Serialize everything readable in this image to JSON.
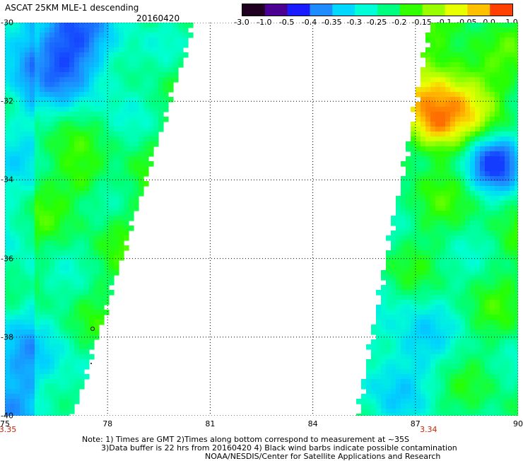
{
  "header": {
    "title": "ASCAT 25KM MLE-1 descending",
    "date": "20160420"
  },
  "colorbar": {
    "ticks": [
      "-3.0",
      "-1.0",
      "-0.5",
      "-0.4",
      "-0.35",
      "-0.3",
      "-0.25",
      "-0.2",
      "-0.15",
      "-0.1",
      "-0.05",
      "0.0",
      "1.0"
    ],
    "colors": [
      "#200020",
      "#4a0090",
      "#1b1bff",
      "#1e8cff",
      "#00d8ff",
      "#00ffd8",
      "#00ff80",
      "#33ff00",
      "#99ff00",
      "#e8ff00",
      "#ffc000",
      "#ff4000"
    ]
  },
  "map": {
    "lat_labels": [
      "-30",
      "-32",
      "-34",
      "-36",
      "-38",
      "-40"
    ],
    "lon_labels": [
      "75",
      "78",
      "81",
      "84",
      "87",
      "90"
    ],
    "lat_range": [
      -40,
      -30
    ],
    "lon_range": [
      75,
      90
    ],
    "swath_times": [
      {
        "label": "3.35",
        "lon": 75
      },
      {
        "label": "3.34",
        "lon": 87.3
      }
    ]
  },
  "notes": {
    "line1": "Note: 1) Times are GMT 2)Times along bottom correspond to measurement at ~35S",
    "line2": "3)Data buffer is 22 hrs from 20160420 4) Black wind barbs indicate possible contamination",
    "line3": "NOAA/NESDIS/Center for Satellite Applications and Research"
  }
}
